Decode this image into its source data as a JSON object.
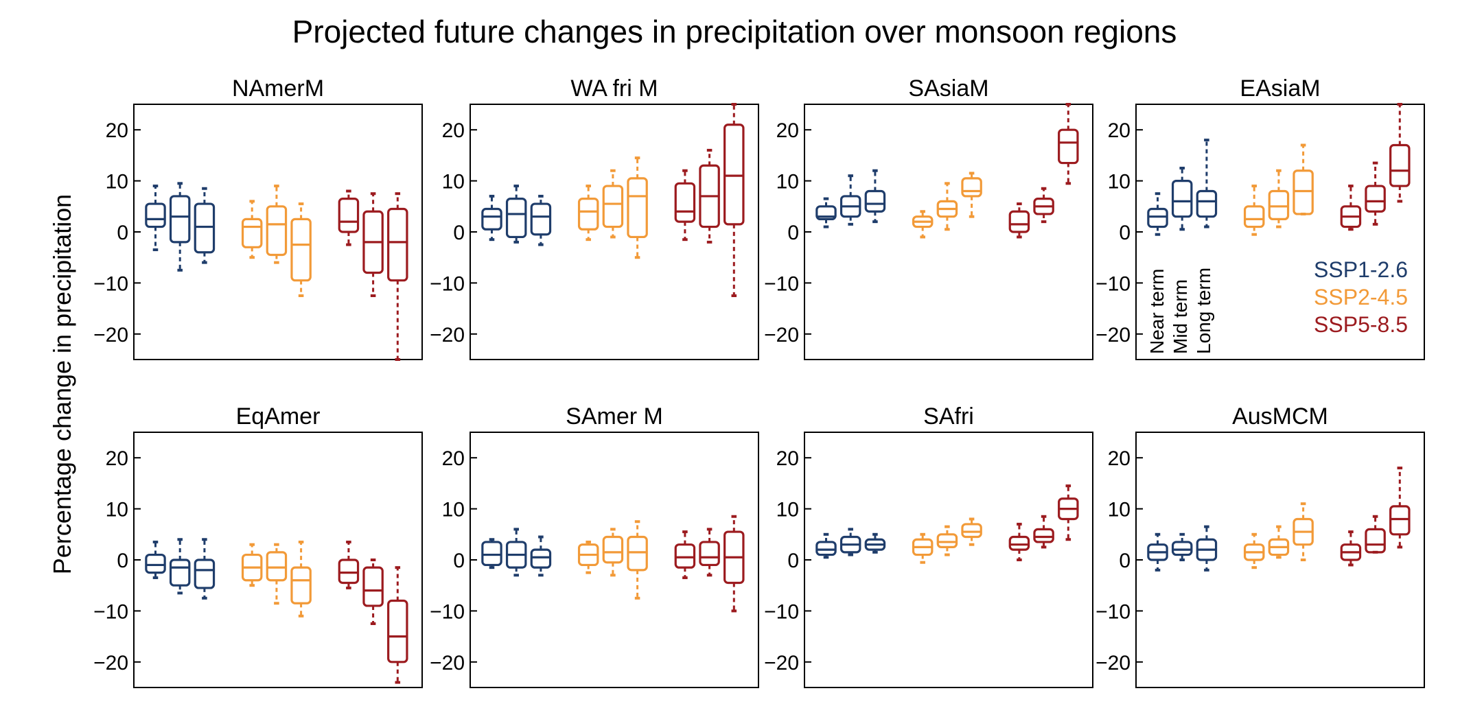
{
  "chart_data": {
    "type": "boxplot",
    "title": "Projected future changes in precipitation over monsoon regions",
    "ylabel": "Percentage change in precipitation",
    "ylim": [
      -25,
      25
    ],
    "yticks": [
      -20,
      -10,
      0,
      10,
      20
    ],
    "ytick_labels": [
      "−20",
      "−10",
      "0",
      "10",
      "20"
    ],
    "grid": false,
    "box_fields": [
      "whisker_low",
      "q1",
      "median",
      "q3",
      "whisker_high"
    ],
    "scenarios": [
      {
        "name": "SSP1-2.6",
        "color": "#1f3d6b"
      },
      {
        "name": "SSP2-4.5",
        "color": "#f29a38"
      },
      {
        "name": "SSP5-8.5",
        "color": "#9c1b1f"
      }
    ],
    "terms": [
      "Near term",
      "Mid term",
      "Long term"
    ],
    "panels": [
      {
        "title": "NAmerM",
        "boxes": [
          [
            [
              -3.5,
              1,
              2.5,
              5.5,
              9
            ],
            [
              -7.5,
              -2,
              3,
              7,
              9.5
            ],
            [
              -6,
              -4,
              1,
              5.5,
              8.5
            ]
          ],
          [
            [
              -5,
              -3,
              1,
              2.5,
              6
            ],
            [
              -6,
              -4.5,
              1.5,
              5,
              9
            ],
            [
              -12.5,
              -9.5,
              -2.5,
              2.5,
              5.5
            ]
          ],
          [
            [
              -2.5,
              0,
              2,
              6.5,
              8
            ],
            [
              -12.5,
              -8,
              -2,
              4,
              7.5
            ],
            [
              -25,
              -9.5,
              -2,
              4.5,
              7.5
            ]
          ]
        ]
      },
      {
        "title": "WA fri M",
        "boxes": [
          [
            [
              -1.5,
              0.5,
              3,
              4.5,
              7
            ],
            [
              -2,
              -1,
              3.5,
              6.5,
              9
            ],
            [
              -2.5,
              -0.5,
              3,
              5.5,
              7
            ]
          ],
          [
            [
              -1.5,
              0.5,
              4,
              6.5,
              9
            ],
            [
              -1,
              1,
              5.5,
              9,
              12
            ],
            [
              -5,
              -1,
              7,
              10.5,
              14.5
            ]
          ],
          [
            [
              -1.5,
              2,
              4,
              9.5,
              12
            ],
            [
              -2,
              1,
              7,
              13,
              16
            ],
            [
              -12.5,
              1.5,
              11,
              21,
              25
            ]
          ]
        ]
      },
      {
        "title": "SAsiaM",
        "boxes": [
          [
            [
              1,
              2.5,
              3,
              5,
              6.5
            ],
            [
              1.5,
              3,
              5,
              7,
              11
            ],
            [
              2,
              4,
              5.5,
              8,
              12
            ]
          ],
          [
            [
              -1,
              1,
              2,
              3,
              4
            ],
            [
              0.5,
              3,
              4.5,
              6,
              9.5
            ],
            [
              3,
              7,
              8,
              10.5,
              11.5
            ]
          ],
          [
            [
              -1,
              0,
              1.5,
              4,
              5.5
            ],
            [
              2,
              3.5,
              5,
              6.5,
              8.5
            ],
            [
              9.5,
              13.5,
              17.5,
              20,
              25
            ]
          ]
        ]
      },
      {
        "title": "EAsiaM",
        "boxes": [
          [
            [
              -0.5,
              1,
              3,
              4.5,
              7.5
            ],
            [
              0.5,
              3,
              6,
              10,
              12.5
            ],
            [
              1,
              3,
              6,
              8,
              18
            ]
          ],
          [
            [
              -0.5,
              1,
              2.5,
              5,
              9
            ],
            [
              1,
              2.5,
              5,
              8,
              12
            ],
            [
              3.5,
              3.5,
              8,
              12,
              17
            ]
          ],
          [
            [
              0.5,
              1,
              3,
              5,
              9
            ],
            [
              1.5,
              4,
              6,
              9,
              13.5
            ],
            [
              6,
              9,
              12,
              17,
              25
            ]
          ]
        ]
      },
      {
        "title": "EqAmer",
        "boxes": [
          [
            [
              -3.5,
              -2.5,
              -1,
              1,
              3.5
            ],
            [
              -6.5,
              -5,
              -1.5,
              0,
              4
            ],
            [
              -7.5,
              -5.5,
              -2,
              0,
              4
            ]
          ],
          [
            [
              -5,
              -4,
              -1.5,
              1,
              3
            ],
            [
              -8.5,
              -4,
              -1.5,
              1.5,
              3
            ],
            [
              -11,
              -8.5,
              -4,
              -1.5,
              3.5
            ]
          ],
          [
            [
              -5.5,
              -4.5,
              -2.5,
              0,
              3.5
            ],
            [
              -12.5,
              -9,
              -6,
              -1.5,
              0
            ],
            [
              -24,
              -20,
              -15,
              -8,
              -1.5
            ]
          ]
        ]
      },
      {
        "title": "SAmer M",
        "boxes": [
          [
            [
              -1.5,
              -1,
              1,
              3.5,
              4
            ],
            [
              -3,
              -1.5,
              1,
              3.5,
              6
            ],
            [
              -3,
              -1.5,
              0.5,
              2,
              4.5
            ]
          ],
          [
            [
              -2.5,
              -1,
              1,
              3,
              3.5
            ],
            [
              -3,
              -0.5,
              1.5,
              4.5,
              6
            ],
            [
              -7.5,
              -2,
              1.5,
              4.5,
              7.5
            ]
          ],
          [
            [
              -3.5,
              -1.5,
              0.5,
              3,
              5.5
            ],
            [
              -3,
              -1,
              0.5,
              3.5,
              6
            ],
            [
              -10,
              -4.5,
              0.5,
              5.5,
              8.5
            ]
          ]
        ]
      },
      {
        "title": "SAfri",
        "boxes": [
          [
            [
              0.5,
              1,
              2,
              3.5,
              5
            ],
            [
              1,
              1.5,
              3,
              4.5,
              6
            ],
            [
              1.5,
              2,
              3,
              4,
              5
            ]
          ],
          [
            [
              -0.5,
              1,
              2.5,
              4,
              5
            ],
            [
              1,
              2.5,
              3.5,
              5,
              6.5
            ],
            [
              3,
              4.5,
              5.5,
              7,
              8
            ]
          ],
          [
            [
              0,
              2,
              3,
              4.5,
              7
            ],
            [
              2.5,
              3.5,
              4.5,
              6,
              8.5
            ],
            [
              4,
              8,
              10,
              12,
              14.5
            ]
          ]
        ]
      },
      {
        "title": "AusMCM",
        "boxes": [
          [
            [
              -2,
              0,
              1.5,
              3,
              5
            ],
            [
              0,
              1,
              2,
              3.5,
              5
            ],
            [
              -2,
              0,
              2,
              4,
              6.5
            ]
          ],
          [
            [
              -1.5,
              0,
              1.5,
              3,
              5
            ],
            [
              0.5,
              1,
              2.5,
              4,
              6.5
            ],
            [
              0,
              3,
              5.5,
              8,
              11
            ]
          ],
          [
            [
              -1,
              0,
              1.5,
              3,
              5.5
            ],
            [
              1.5,
              1.5,
              3,
              6,
              8.5
            ],
            [
              2.5,
              5,
              8,
              10.5,
              18
            ]
          ]
        ]
      }
    ]
  }
}
